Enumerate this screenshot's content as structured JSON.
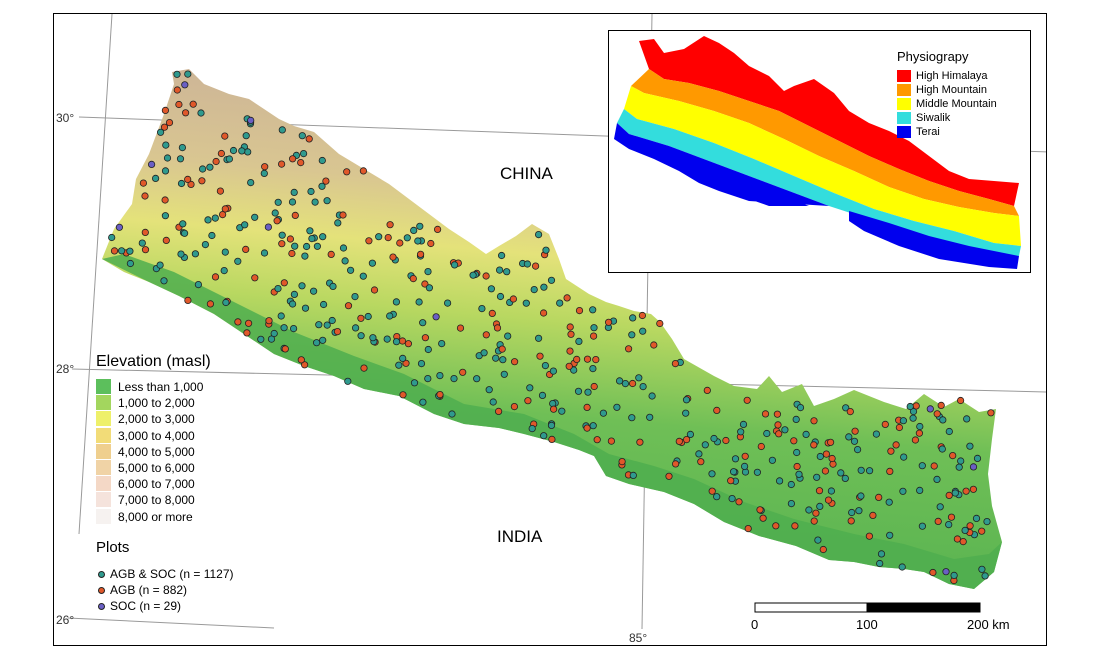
{
  "graticule": {
    "lat_30": "30°",
    "lat_28": "28°",
    "lat_26": "26°",
    "lon_85": "85°"
  },
  "countries": {
    "north": "CHINA",
    "south": "INDIA"
  },
  "elevation_legend": {
    "title": "Elevation (masl)",
    "classes": [
      {
        "label": "Less than 1,000",
        "color": "#5cbf5c"
      },
      {
        "label": "1,000 to 2,000",
        "color": "#a3d65e"
      },
      {
        "label": "2,000 to 3,000",
        "color": "#eef06a"
      },
      {
        "label": "3,000 to 4,000",
        "color": "#f2dc78"
      },
      {
        "label": "4,000 to 5,000",
        "color": "#efcf8e"
      },
      {
        "label": "5,000 to 6,000",
        "color": "#f0d3a6"
      },
      {
        "label": "6,000 to 7,000",
        "color": "#f4d8c6"
      },
      {
        "label": "7,000 to 8,000",
        "color": "#f5e3dc"
      },
      {
        "label": "8,000 or more",
        "color": "#f6f2f0"
      }
    ]
  },
  "plots_legend": {
    "title": "Plots",
    "items": [
      {
        "label": "AGB & SOC (n = 1127)",
        "color": "#2f9a8e"
      },
      {
        "label": "AGB (n = 882)",
        "color": "#e0582a"
      },
      {
        "label": "SOC  (n = 29)",
        "color": "#6a5fc4"
      }
    ]
  },
  "physiography_legend": {
    "title": "Physiograpy",
    "classes": [
      {
        "label": "High Himalaya",
        "color": "#ff0000"
      },
      {
        "label": "High Mountain",
        "color": "#ff9900"
      },
      {
        "label": "Middle Mountain",
        "color": "#ffff00"
      },
      {
        "label": "Siwalik",
        "color": "#33dddd"
      },
      {
        "label": "Terai",
        "color": "#0000ee"
      }
    ]
  },
  "scale_bar": {
    "labels": [
      "0",
      "100",
      "200 km"
    ]
  }
}
